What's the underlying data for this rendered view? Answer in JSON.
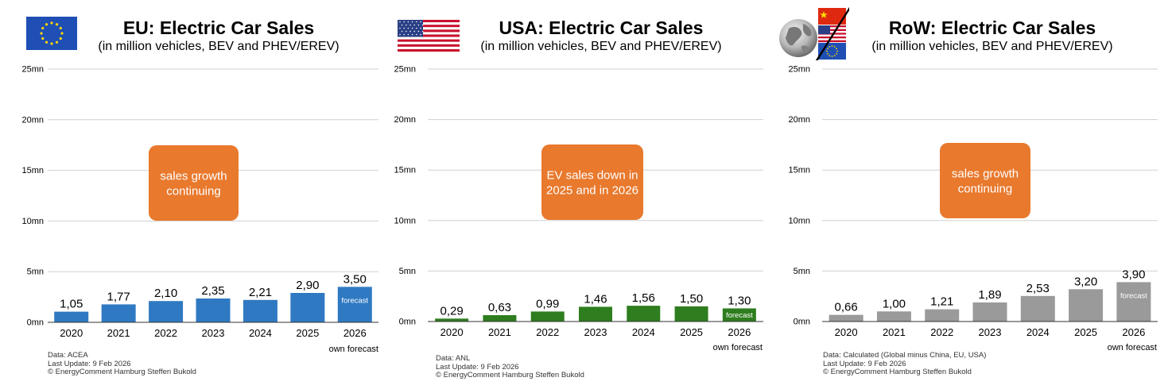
{
  "chart_data": [
    {
      "type": "bar",
      "title": "EU: Electric Car Sales",
      "subtitle": "(in million vehicles, BEV and PHEV/EREV)",
      "categories": [
        "2020",
        "2021",
        "2022",
        "2023",
        "2024",
        "2025",
        "2026"
      ],
      "values": [
        1.05,
        1.77,
        2.1,
        2.35,
        2.21,
        2.9,
        3.5
      ],
      "value_labels": [
        "1,05",
        "1,77",
        "2,10",
        "2,35",
        "2,21",
        "2,90",
        "3,50"
      ],
      "bar_color": "#2f79c2",
      "ylim": [
        0,
        25
      ],
      "yticks": [
        0,
        5,
        10,
        15,
        20,
        25
      ],
      "ytick_labels": [
        "0mn",
        "5mn",
        "10mn",
        "15mn",
        "20mn",
        "25mn"
      ],
      "grid": true,
      "forecast_bar_label": "forecast",
      "forecast_note": "own forecast",
      "callout": [
        "sales growth",
        "continuing"
      ],
      "callout_color": "#e8792d",
      "source": [
        "Data: ACEA",
        "Last Update: 9 Feb 2026",
        "© EnergyComment Hamburg Steffen Bukold"
      ],
      "flag_icon": "eu-flag-icon"
    },
    {
      "type": "bar",
      "title": "USA: Electric Car Sales",
      "subtitle": "(in million vehicles, BEV and PHEV/EREV)",
      "categories": [
        "2020",
        "2021",
        "2022",
        "2023",
        "2024",
        "2025",
        "2026"
      ],
      "values": [
        0.29,
        0.63,
        0.99,
        1.46,
        1.56,
        1.5,
        1.3
      ],
      "value_labels": [
        "0,29",
        "0,63",
        "0,99",
        "1,46",
        "1,56",
        "1,50",
        "1,30"
      ],
      "bar_color": "#2e7d1e",
      "ylim": [
        0,
        25
      ],
      "yticks": [
        0,
        5,
        10,
        15,
        20,
        25
      ],
      "ytick_labels": [
        "0mn",
        "5mn",
        "10mn",
        "15mn",
        "20mn",
        "25mn"
      ],
      "grid": true,
      "forecast_bar_label": "forecast",
      "forecast_note": "own forecast",
      "callout": [
        "EV sales down in",
        "2025 and in 2026"
      ],
      "callout_color": "#e8792d",
      "source": [
        "Data: ANL",
        "Last Update: 9 Feb 2026",
        "© EnergyComment Hamburg Steffen Bukold"
      ],
      "flag_icon": "usa-flag-icon"
    },
    {
      "type": "bar",
      "title": "RoW: Electric Car Sales",
      "subtitle": "(in million vehicles, BEV and PHEV/EREV)",
      "categories": [
        "2020",
        "2021",
        "2022",
        "2023",
        "2024",
        "2025",
        "2026"
      ],
      "values": [
        0.66,
        1.0,
        1.21,
        1.89,
        2.53,
        3.2,
        3.9
      ],
      "value_labels": [
        "0,66",
        "1,00",
        "1,21",
        "1,89",
        "2,53",
        "3,20",
        "3,90"
      ],
      "bar_color": "#9a9a9a",
      "ylim": [
        0,
        25
      ],
      "yticks": [
        0,
        5,
        10,
        15,
        20,
        25
      ],
      "ytick_labels": [
        "0mn",
        "5mn",
        "10mn",
        "15mn",
        "20mn",
        "25mn"
      ],
      "grid": true,
      "forecast_bar_label": "forecast",
      "forecast_note": "own forecast",
      "callout": [
        "sales growth",
        "continuing"
      ],
      "callout_color": "#e8792d",
      "source": [
        "Data: Calculated (Global minus China, EU, USA)",
        "Last Update: 9 Feb 2026",
        "© EnergyComment Hamburg Steffen Bukold"
      ],
      "flag_icon": "globe-minus-flags-icon"
    }
  ]
}
